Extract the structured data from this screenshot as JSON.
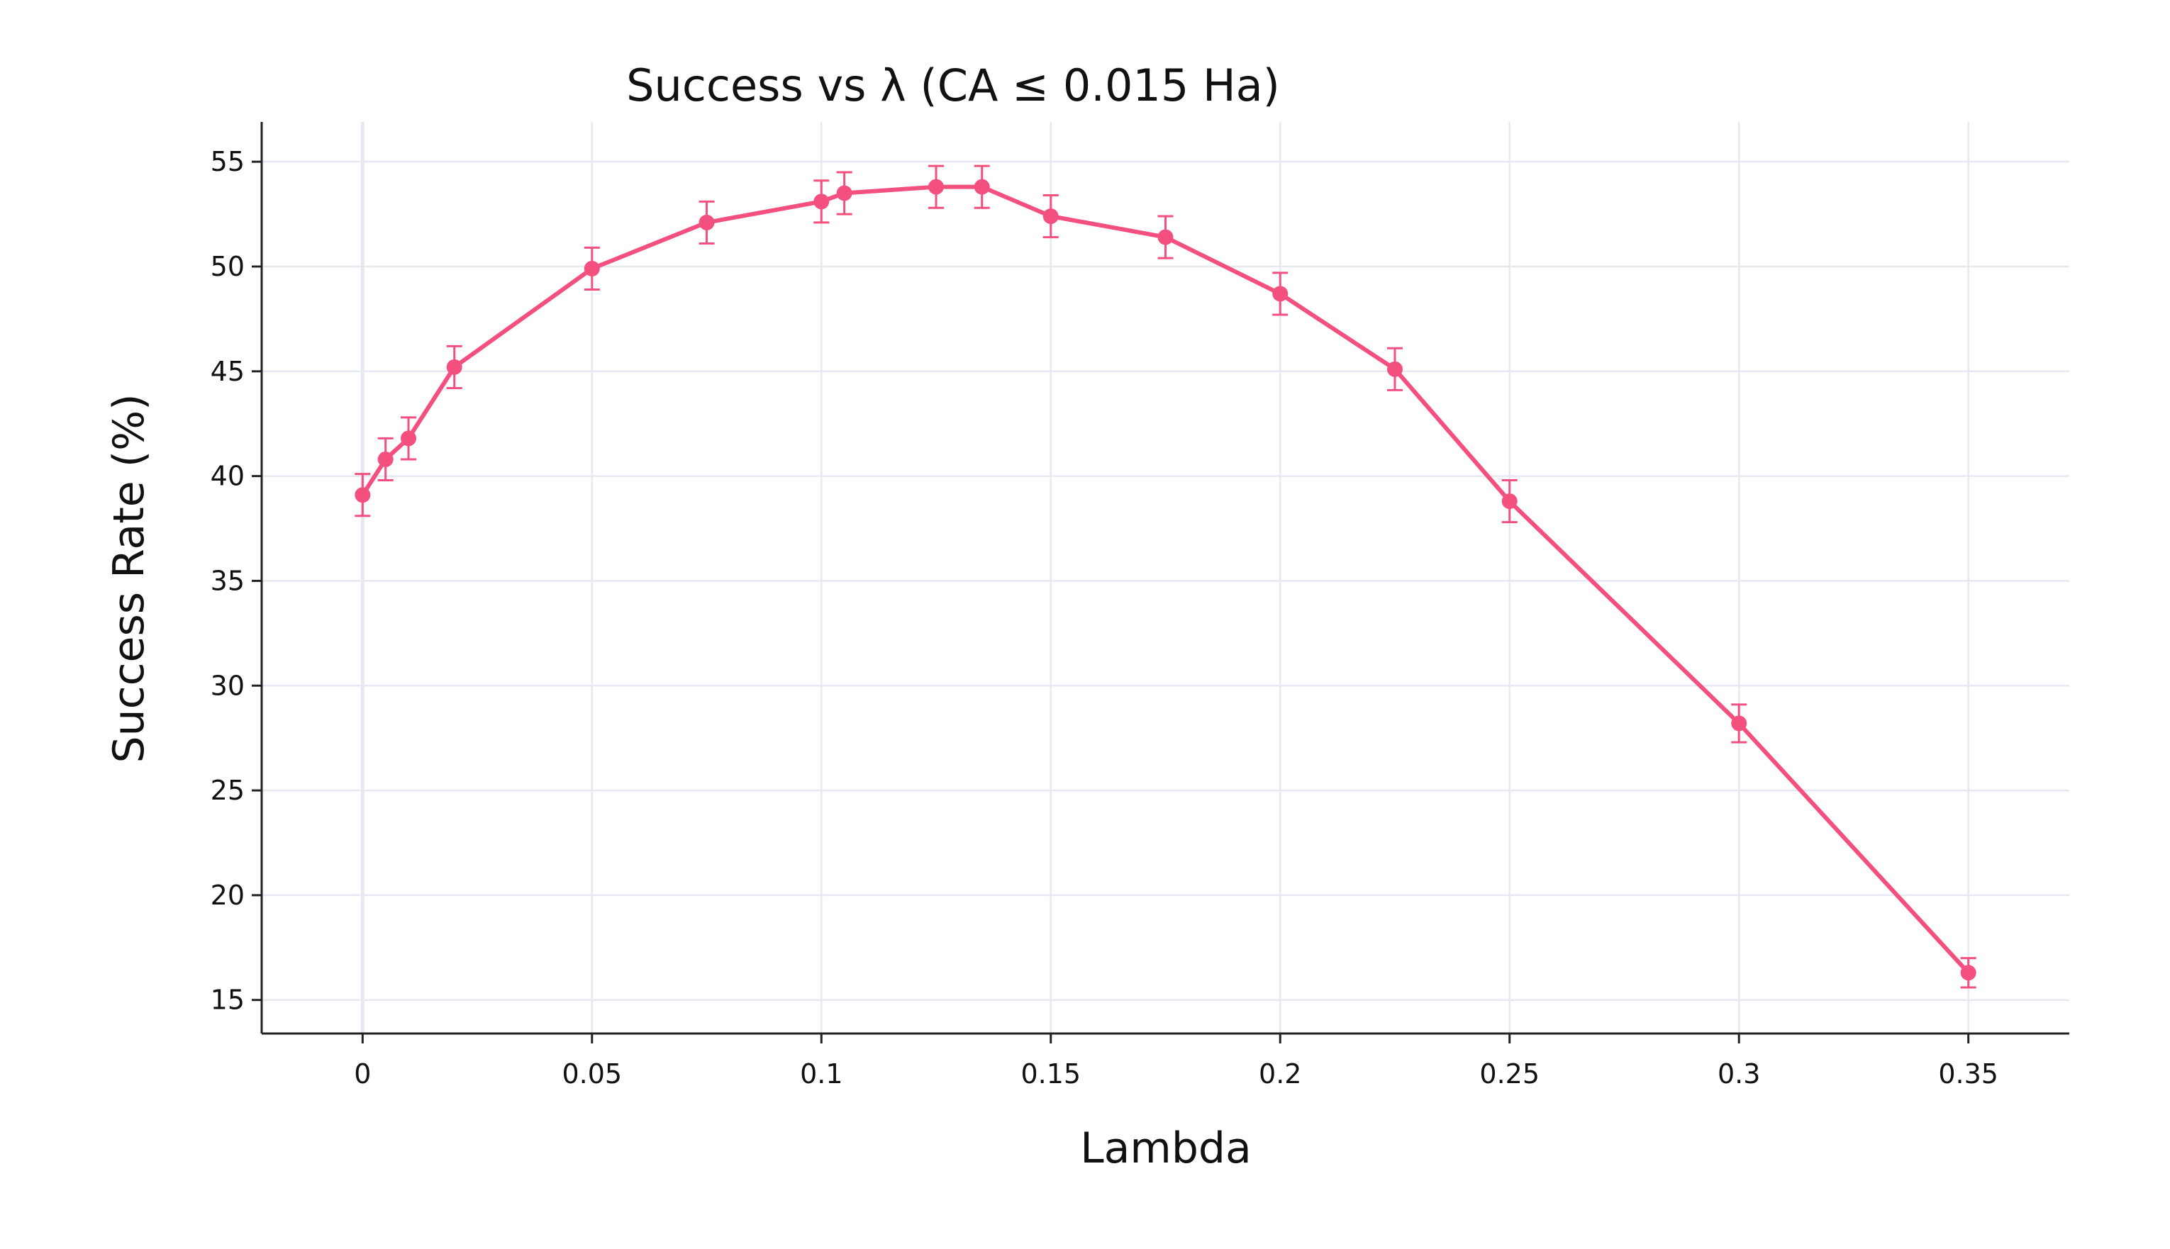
{
  "chart_data": {
    "type": "line",
    "title": "Success vs λ (CA ≤ 0.015 Ha)",
    "xlabel": "Lambda",
    "ylabel": "Success Rate (%)",
    "xlim": [
      -0.022,
      0.372
    ],
    "ylim": [
      13.4,
      56.9
    ],
    "grid": true,
    "x_ticks": [
      0,
      0.05,
      0.1,
      0.15,
      0.2,
      0.25,
      0.3,
      0.35
    ],
    "x_tick_labels": [
      "0",
      "0.05",
      "0.1",
      "0.15",
      "0.2",
      "0.25",
      "0.3",
      "0.35"
    ],
    "y_ticks": [
      15,
      20,
      25,
      30,
      35,
      40,
      45,
      50,
      55
    ],
    "y_tick_labels": [
      "15",
      "20",
      "25",
      "30",
      "35",
      "40",
      "45",
      "50",
      "55"
    ],
    "series": [
      {
        "color": "#f4507f",
        "x": [
          0,
          0.005,
          0.01,
          0.02,
          0.05,
          0.075,
          0.1,
          0.105,
          0.125,
          0.135,
          0.15,
          0.175,
          0.2,
          0.225,
          0.25,
          0.3,
          0.35
        ],
        "values": [
          39.1,
          40.8,
          41.8,
          45.2,
          49.9,
          52.1,
          53.1,
          53.5,
          53.8,
          53.8,
          52.4,
          51.4,
          48.7,
          45.1,
          38.8,
          28.2,
          16.3
        ],
        "error": [
          1.0,
          1.0,
          1.0,
          1.0,
          1.0,
          1.0,
          1.0,
          1.0,
          1.0,
          1.0,
          1.0,
          1.0,
          1.0,
          1.0,
          1.0,
          0.9,
          0.7
        ]
      }
    ]
  }
}
